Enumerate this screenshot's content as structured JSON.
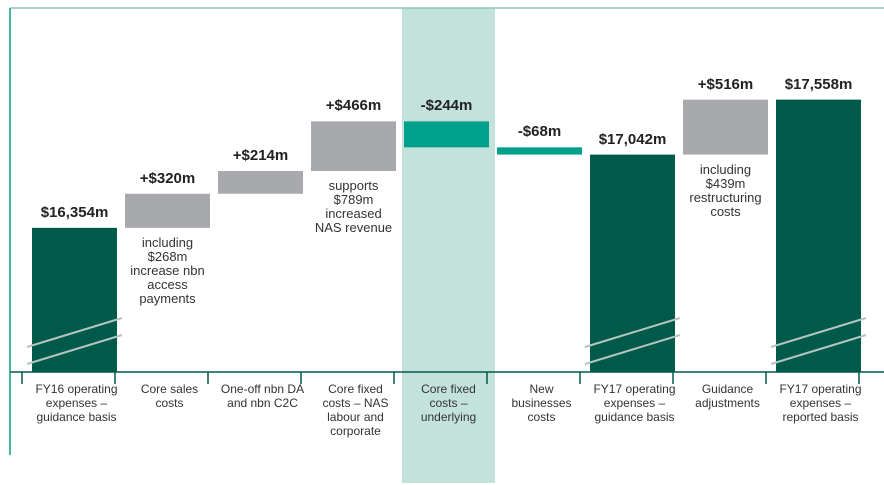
{
  "chart_data": {
    "type": "waterfall",
    "categories": [
      "FY16 operating expenses – guidance basis",
      "Core sales costs",
      "One-off nbn DA and nbn C2C",
      "Core fixed costs – NAS labour and corporate",
      "Core fixed costs – underlying",
      "New businesses costs",
      "FY17 operating expenses – guidance basis",
      "Guidance adjustments",
      "FY17 operating expenses – reported basis"
    ],
    "values": [
      16354,
      320,
      214,
      466,
      -244,
      -68,
      17042,
      516,
      17558
    ],
    "value_labels": [
      "$16,354m",
      "+$320m",
      "+$214m",
      "+$466m",
      "-$244m",
      "-$68m",
      "$17,042m",
      "+$516m",
      "$17,558m"
    ],
    "is_total": [
      true,
      false,
      false,
      false,
      false,
      false,
      true,
      false,
      true
    ],
    "colors": [
      "#005a4a",
      "#a7a9ac",
      "#a7a9ac",
      "#a7a9ac",
      "#00a08a",
      "#00a08a",
      "#005a4a",
      "#a7a9ac",
      "#005a4a"
    ],
    "highlight": 4,
    "highlight_color": "#c3e2dc",
    "annotations": [
      {
        "index": 1,
        "text": "including $268m increase nbn access payments"
      },
      {
        "index": 3,
        "text": "supports $789m increased NAS revenue"
      },
      {
        "index": 7,
        "text": "including $439m restructuring costs"
      }
    ],
    "ylim": [
      15000,
      18400
    ]
  }
}
